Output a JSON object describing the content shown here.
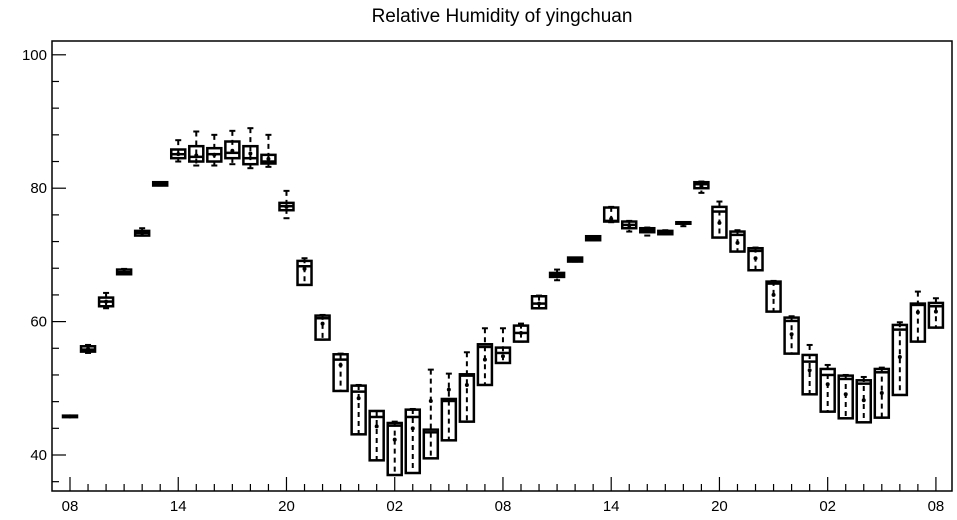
{
  "chart_data": {
    "type": "box",
    "title": "Relative Humidity of yingchuan",
    "xlabel": "",
    "ylabel": "",
    "ylim": [
      35,
      102
    ],
    "yticks": [
      40,
      60,
      80,
      100
    ],
    "ytick_labels": [
      "40",
      "60",
      "80",
      "100"
    ],
    "x_tick_labels": [
      {
        "index": 0,
        "label": "08"
      },
      {
        "index": 6,
        "label": "14"
      },
      {
        "index": 12,
        "label": "20"
      },
      {
        "index": 18,
        "label": "02"
      },
      {
        "index": 24,
        "label": "08"
      },
      {
        "index": 30,
        "label": "14"
      },
      {
        "index": 36,
        "label": "20"
      },
      {
        "index": 42,
        "label": "02"
      },
      {
        "index": 48,
        "label": "08"
      }
    ],
    "grid": false,
    "boxes": [
      {
        "index": 0,
        "whisker_low": 45.8,
        "q1": 45.8,
        "median": 45.8,
        "q3": 45.9,
        "whisker_high": 45.9,
        "mean": 45.8
      },
      {
        "index": 1,
        "whisker_low": 55.3,
        "q1": 55.5,
        "median": 55.8,
        "q3": 56.3,
        "whisker_high": 56.5,
        "mean": 55.9
      },
      {
        "index": 2,
        "whisker_low": 62.0,
        "q1": 62.3,
        "median": 63.0,
        "q3": 63.6,
        "whisker_high": 64.3,
        "mean": 63.0
      },
      {
        "index": 3,
        "whisker_low": 67.1,
        "q1": 67.1,
        "median": 67.4,
        "q3": 67.8,
        "whisker_high": 67.9,
        "mean": 67.4
      },
      {
        "index": 4,
        "whisker_low": 72.9,
        "q1": 72.9,
        "median": 73.3,
        "q3": 73.6,
        "whisker_high": 74.0,
        "mean": 73.3
      },
      {
        "index": 5,
        "whisker_low": 80.4,
        "q1": 80.4,
        "median": 80.6,
        "q3": 80.9,
        "whisker_high": 80.9,
        "mean": 80.6
      },
      {
        "index": 6,
        "whisker_low": 84.0,
        "q1": 84.5,
        "median": 85.1,
        "q3": 85.8,
        "whisker_high": 87.2,
        "mean": 85.1
      },
      {
        "index": 7,
        "whisker_low": 83.4,
        "q1": 84.0,
        "median": 84.7,
        "q3": 86.3,
        "whisker_high": 88.5,
        "mean": 84.9
      },
      {
        "index": 8,
        "whisker_low": 83.4,
        "q1": 84.0,
        "median": 85.1,
        "q3": 86.0,
        "whisker_high": 88.0,
        "mean": 85.0
      },
      {
        "index": 9,
        "whisker_low": 83.6,
        "q1": 84.5,
        "median": 85.3,
        "q3": 87.0,
        "whisker_high": 88.6,
        "mean": 85.6
      },
      {
        "index": 10,
        "whisker_low": 83.0,
        "q1": 83.6,
        "median": 84.5,
        "q3": 86.3,
        "whisker_high": 89.0,
        "mean": 85.2
      },
      {
        "index": 11,
        "whisker_low": 83.2,
        "q1": 83.7,
        "median": 84.0,
        "q3": 85.0,
        "whisker_high": 88.0,
        "mean": 84.4
      },
      {
        "index": 12,
        "whisker_low": 75.5,
        "q1": 76.7,
        "median": 77.3,
        "q3": 77.8,
        "whisker_high": 79.6,
        "mean": 77.2
      },
      {
        "index": 13,
        "whisker_low": 65.5,
        "q1": 65.5,
        "median": 68.3,
        "q3": 69.1,
        "whisker_high": 69.5,
        "mean": 67.9
      },
      {
        "index": 14,
        "whisker_low": 57.3,
        "q1": 57.3,
        "median": 60.5,
        "q3": 60.9,
        "whisker_high": 61.0,
        "mean": 59.7
      },
      {
        "index": 15,
        "whisker_low": 49.6,
        "q1": 49.6,
        "median": 54.3,
        "q3": 55.1,
        "whisker_high": 55.2,
        "mean": 53.5
      },
      {
        "index": 16,
        "whisker_low": 43.1,
        "q1": 43.1,
        "median": 49.5,
        "q3": 50.4,
        "whisker_high": 50.5,
        "mean": 48.5
      },
      {
        "index": 17,
        "whisker_low": 39.2,
        "q1": 39.2,
        "median": 45.7,
        "q3": 46.6,
        "whisker_high": 46.6,
        "mean": 44.3
      },
      {
        "index": 18,
        "whisker_low": 37.0,
        "q1": 37.0,
        "median": 44.4,
        "q3": 44.8,
        "whisker_high": 45.0,
        "mean": 42.3
      },
      {
        "index": 19,
        "whisker_low": 37.3,
        "q1": 37.3,
        "median": 45.7,
        "q3": 46.8,
        "whisker_high": 46.9,
        "mean": 44.0
      },
      {
        "index": 20,
        "whisker_low": 39.5,
        "q1": 39.5,
        "median": 43.4,
        "q3": 43.8,
        "whisker_high": 52.8,
        "mean": 48.1
      },
      {
        "index": 21,
        "whisker_low": 42.2,
        "q1": 42.2,
        "median": 48.1,
        "q3": 48.4,
        "whisker_high": 52.2,
        "mean": 49.8
      },
      {
        "index": 22,
        "whisker_low": 45.0,
        "q1": 45.0,
        "median": 51.9,
        "q3": 52.1,
        "whisker_high": 55.4,
        "mean": 50.5
      },
      {
        "index": 23,
        "whisker_low": 50.5,
        "q1": 50.5,
        "median": 56.2,
        "q3": 56.6,
        "whisker_high": 59.0,
        "mean": 54.3
      },
      {
        "index": 24,
        "whisker_low": 53.8,
        "q1": 53.8,
        "median": 55.3,
        "q3": 56.1,
        "whisker_high": 59.0,
        "mean": 54.8
      },
      {
        "index": 25,
        "whisker_low": 57.0,
        "q1": 57.0,
        "median": 58.3,
        "q3": 59.4,
        "whisker_high": 59.7,
        "mean": 58.3
      },
      {
        "index": 26,
        "whisker_low": 62.0,
        "q1": 62.0,
        "median": 62.7,
        "q3": 63.8,
        "whisker_high": 63.9,
        "mean": 62.7
      },
      {
        "index": 27,
        "whisker_low": 66.2,
        "q1": 66.7,
        "median": 67.0,
        "q3": 67.3,
        "whisker_high": 67.8,
        "mean": 67.0
      },
      {
        "index": 28,
        "whisker_low": 69.0,
        "q1": 69.0,
        "median": 69.3,
        "q3": 69.6,
        "whisker_high": 69.6,
        "mean": 69.3
      },
      {
        "index": 29,
        "whisker_low": 72.2,
        "q1": 72.2,
        "median": 72.5,
        "q3": 72.8,
        "whisker_high": 72.8,
        "mean": 72.5
      },
      {
        "index": 30,
        "whisker_low": 74.9,
        "q1": 75.0,
        "median": 75.1,
        "q3": 77.1,
        "whisker_high": 77.2,
        "mean": 75.4
      },
      {
        "index": 31,
        "whisker_low": 73.5,
        "q1": 74.0,
        "median": 74.5,
        "q3": 75.0,
        "whisker_high": 75.1,
        "mean": 74.4
      },
      {
        "index": 32,
        "whisker_low": 72.9,
        "q1": 73.4,
        "median": 73.7,
        "q3": 74.0,
        "whisker_high": 74.1,
        "mean": 73.6
      },
      {
        "index": 33,
        "whisker_low": 73.1,
        "q1": 73.1,
        "median": 73.4,
        "q3": 73.6,
        "whisker_high": 73.7,
        "mean": 73.3
      },
      {
        "index": 34,
        "whisker_low": 74.3,
        "q1": 74.7,
        "median": 74.8,
        "q3": 74.9,
        "whisker_high": 74.9,
        "mean": 74.7
      },
      {
        "index": 35,
        "whisker_low": 79.3,
        "q1": 80.0,
        "median": 80.6,
        "q3": 80.9,
        "whisker_high": 81.0,
        "mean": 80.3
      },
      {
        "index": 36,
        "whisker_low": 72.6,
        "q1": 72.6,
        "median": 76.5,
        "q3": 77.2,
        "whisker_high": 78.0,
        "mean": 74.8
      },
      {
        "index": 37,
        "whisker_low": 70.5,
        "q1": 70.5,
        "median": 73.0,
        "q3": 73.5,
        "whisker_high": 73.7,
        "mean": 71.8
      },
      {
        "index": 38,
        "whisker_low": 67.7,
        "q1": 67.7,
        "median": 70.6,
        "q3": 71.0,
        "whisker_high": 71.1,
        "mean": 69.5
      },
      {
        "index": 39,
        "whisker_low": 61.5,
        "q1": 61.5,
        "median": 65.7,
        "q3": 66.0,
        "whisker_high": 66.1,
        "mean": 64.0
      },
      {
        "index": 40,
        "whisker_low": 55.2,
        "q1": 55.2,
        "median": 60.1,
        "q3": 60.6,
        "whisker_high": 60.8,
        "mean": 58.1
      },
      {
        "index": 41,
        "whisker_low": 49.1,
        "q1": 49.1,
        "median": 54.0,
        "q3": 55.0,
        "whisker_high": 56.5,
        "mean": 52.7
      },
      {
        "index": 42,
        "whisker_low": 46.5,
        "q1": 46.5,
        "median": 52.0,
        "q3": 52.9,
        "whisker_high": 53.5,
        "mean": 50.6
      },
      {
        "index": 43,
        "whisker_low": 45.5,
        "q1": 45.5,
        "median": 51.4,
        "q3": 51.9,
        "whisker_high": 52.0,
        "mean": 49.1
      },
      {
        "index": 44,
        "whisker_low": 44.9,
        "q1": 44.9,
        "median": 50.7,
        "q3": 51.2,
        "whisker_high": 51.7,
        "mean": 48.2
      },
      {
        "index": 45,
        "whisker_low": 45.6,
        "q1": 45.6,
        "median": 52.4,
        "q3": 52.9,
        "whisker_high": 53.1,
        "mean": 49.3
      },
      {
        "index": 46,
        "whisker_low": 49.0,
        "q1": 49.0,
        "median": 58.8,
        "q3": 59.5,
        "whisker_high": 59.9,
        "mean": 54.7
      },
      {
        "index": 47,
        "whisker_low": 57.0,
        "q1": 57.0,
        "median": 62.5,
        "q3": 62.7,
        "whisker_high": 64.5,
        "mean": 61.4
      },
      {
        "index": 48,
        "whisker_low": 59.1,
        "q1": 59.1,
        "median": 62.3,
        "q3": 62.8,
        "whisker_high": 63.5,
        "mean": 61.5
      }
    ]
  }
}
